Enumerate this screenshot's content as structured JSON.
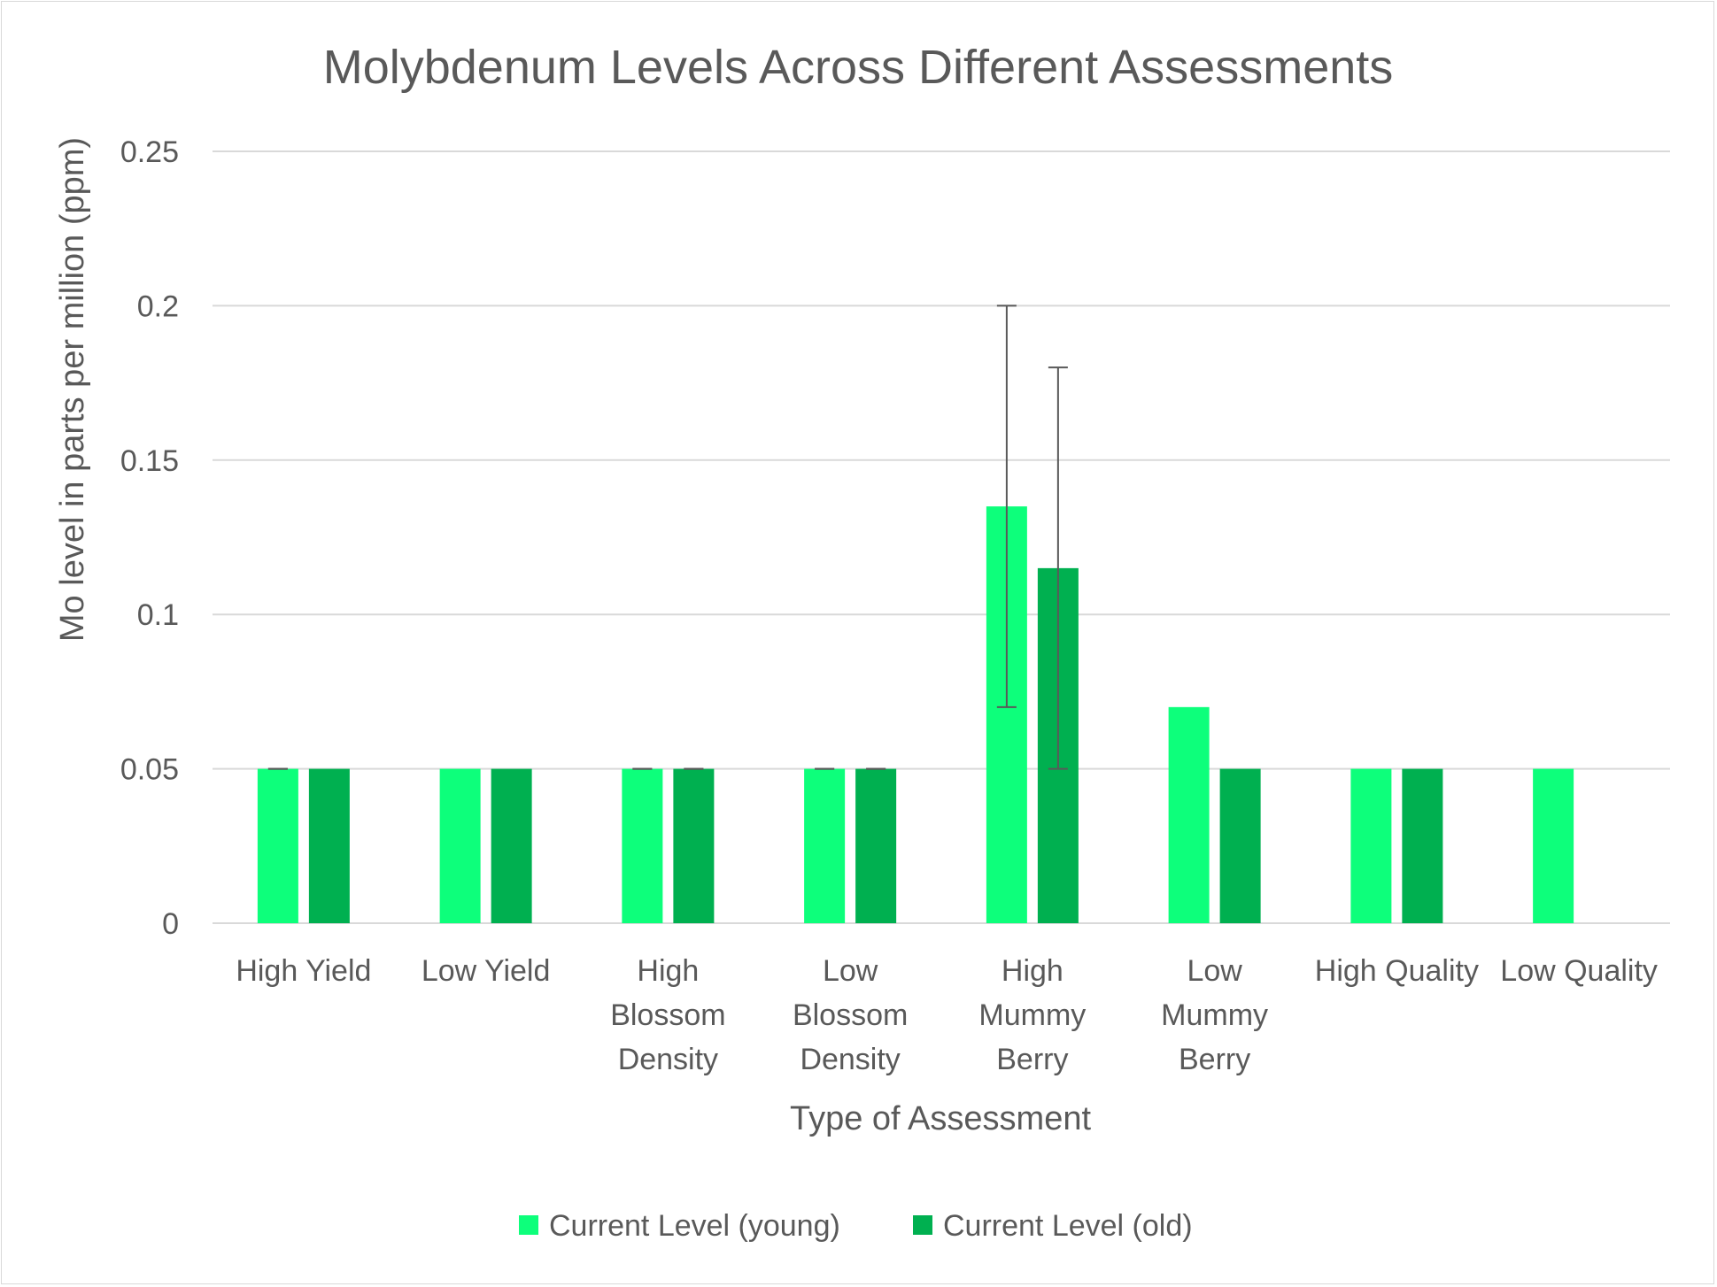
{
  "chart_data": {
    "type": "bar",
    "title": "Molybdenum Levels Across Different Assessments",
    "xlabel": "Type of Assessment",
    "ylabel": "Mo level in parts per million (ppm)",
    "ylim": [
      0,
      0.25
    ],
    "yticks": [
      "0",
      "0.05",
      "0.1",
      "0.15",
      "0.2",
      "0.25"
    ],
    "grid": true,
    "legend_position": "bottom",
    "categories": [
      [
        "High Yield"
      ],
      [
        "Low Yield"
      ],
      [
        "High",
        "Blossom",
        "Density"
      ],
      [
        "Low",
        "Blossom",
        "Density"
      ],
      [
        "High",
        "Mummy",
        "Berry"
      ],
      [
        "Low",
        "Mummy",
        "Berry"
      ],
      [
        "High Quality"
      ],
      [
        "Low Quality"
      ]
    ],
    "series": [
      {
        "name": "Current Level (young)",
        "color": "#0dff7b",
        "values": [
          0.05,
          0.05,
          0.05,
          0.05,
          0.135,
          0.07,
          0.05,
          0.05
        ],
        "error_low": [
          0.05,
          null,
          0.05,
          0.05,
          0.07,
          null,
          null,
          null
        ],
        "error_high": [
          0.05,
          null,
          0.05,
          0.05,
          0.2,
          null,
          null,
          null
        ]
      },
      {
        "name": "Current Level (old)",
        "color": "#00b050",
        "values": [
          0.05,
          0.05,
          0.05,
          0.05,
          0.115,
          0.05,
          0.05,
          null
        ],
        "error_low": [
          null,
          null,
          0.05,
          0.05,
          0.05,
          null,
          null,
          null
        ],
        "error_high": [
          null,
          null,
          0.05,
          0.05,
          0.18,
          null,
          null,
          null
        ]
      }
    ]
  }
}
